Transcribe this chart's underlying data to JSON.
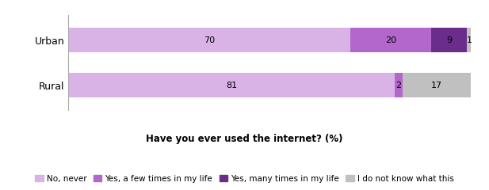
{
  "categories": [
    "Urban",
    "Rural"
  ],
  "series": [
    {
      "label": "No, never",
      "values": [
        70,
        81
      ],
      "color": "#d9b3e6"
    },
    {
      "label": "Yes, a few times in my life",
      "values": [
        20,
        2
      ],
      "color": "#b366cc"
    },
    {
      "label": "Yes, many times in my life",
      "values": [
        9,
        0
      ],
      "color": "#6b2d8b"
    },
    {
      "label": "I do not know what this",
      "values": [
        1,
        17
      ],
      "color": "#c0c0c0"
    }
  ],
  "xlabel": "Have you ever used the internet? (%)",
  "xlabel_fontsize": 8.5,
  "bar_height": 0.55,
  "xlim": [
    0,
    102
  ],
  "label_fontsize": 8,
  "legend_fontsize": 7.5,
  "tick_fontsize": 9,
  "background_color": "#ffffff"
}
